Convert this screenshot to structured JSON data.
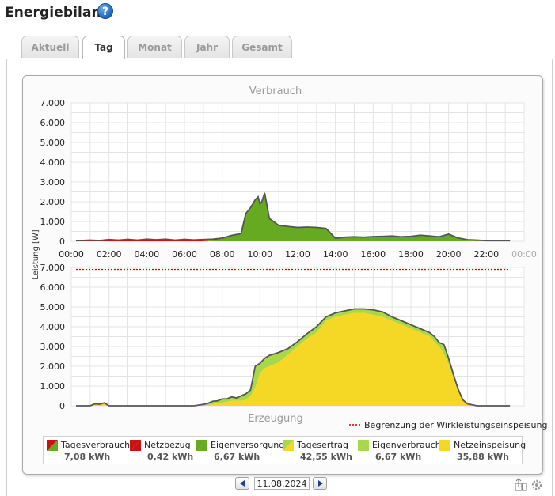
{
  "header": {
    "title": "Energiebilanz",
    "help_icon": "help-icon",
    "help_glyph": "?"
  },
  "tabs": [
    {
      "label": "Aktuell",
      "active": false
    },
    {
      "label": "Tag",
      "active": true
    },
    {
      "label": "Monat",
      "active": false
    },
    {
      "label": "Jahr",
      "active": false
    },
    {
      "label": "Gesamt",
      "active": false
    }
  ],
  "colors": {
    "verbrauch_fill": "#66aa22",
    "netzbezug": "#cc1111",
    "eigenverbrauch": "#a8d84a",
    "netzeinspeisung": "#f5d826",
    "outline": "#555555",
    "limit_line": "#cc0000"
  },
  "chart_data": [
    {
      "type": "area",
      "title": "Verbrauch",
      "ylabel": "Leistung [W]",
      "ylim": [
        0,
        7000
      ],
      "y_ticks": [
        "7.000",
        "6.000",
        "5.000",
        "4.000",
        "3.000",
        "2.000",
        "1.000",
        "0"
      ],
      "x_ticks": [
        "00:00",
        "02:00",
        "04:00",
        "06:00",
        "08:00",
        "10:00",
        "12:00",
        "14:00",
        "16:00",
        "18:00",
        "20:00",
        "22:00",
        "00:00"
      ],
      "x": [
        0.25,
        1,
        1.5,
        2,
        2.5,
        3,
        3.5,
        4,
        4.5,
        5,
        5.5,
        6,
        6.5,
        7,
        7.5,
        8,
        8.5,
        9,
        9.25,
        9.5,
        9.75,
        9.9,
        10,
        10.1,
        10.25,
        10.5,
        11,
        11.5,
        12,
        12.5,
        13,
        13.5,
        14,
        14.5,
        15,
        15.5,
        16,
        16.5,
        17,
        17.5,
        18,
        18.5,
        19,
        19.5,
        20,
        20.5,
        21,
        21.5,
        22,
        23.25
      ],
      "series": [
        {
          "name": "Eigenversorgung",
          "values": [
            0,
            0,
            0,
            0,
            0,
            0,
            0,
            0,
            0,
            0,
            0,
            0,
            0,
            0,
            50,
            120,
            280,
            380,
            1400,
            1700,
            2100,
            2250,
            1900,
            2000,
            2450,
            1150,
            800,
            750,
            700,
            720,
            700,
            650,
            150,
            200,
            220,
            200,
            230,
            240,
            260,
            220,
            240,
            300,
            260,
            220,
            350,
            150,
            50,
            20,
            0,
            0
          ]
        },
        {
          "name": "Netzbezug",
          "values": [
            30,
            60,
            40,
            90,
            60,
            100,
            60,
            110,
            80,
            110,
            60,
            100,
            70,
            90,
            60,
            40,
            20,
            10,
            0,
            0,
            0,
            0,
            0,
            0,
            0,
            0,
            0,
            0,
            0,
            0,
            0,
            0,
            10,
            10,
            10,
            10,
            10,
            10,
            10,
            10,
            10,
            10,
            10,
            10,
            10,
            20,
            30,
            40,
            30,
            30
          ]
        }
      ]
    },
    {
      "type": "area",
      "title": "Erzeugung",
      "ylabel": "Leistung [W]",
      "ylim": [
        0,
        7000
      ],
      "y_ticks": [
        "7.000",
        "6.000",
        "5.000",
        "4.000",
        "3.000",
        "2.000",
        "1.000",
        "0"
      ],
      "x": [
        0.25,
        1,
        1.25,
        1.5,
        1.75,
        2,
        2.5,
        6,
        6.5,
        7,
        7.25,
        7.5,
        7.75,
        8,
        8.25,
        8.5,
        8.75,
        9,
        9.25,
        9.5,
        9.75,
        10,
        10.25,
        10.5,
        11,
        11.5,
        12,
        12.5,
        13,
        13.25,
        13.5,
        14,
        14.5,
        15,
        15.5,
        16,
        16.5,
        17,
        17.5,
        18,
        18.5,
        19,
        19.25,
        19.5,
        19.75,
        20,
        20.25,
        20.5,
        20.75,
        21,
        21.5,
        22,
        23.25
      ],
      "limit_line": {
        "value": 6900,
        "label": "Begrenzung der Wirkleistungseinspeisung"
      },
      "series": [
        {
          "name": "Netzeinspeisung",
          "values": [
            0,
            0,
            100,
            80,
            150,
            0,
            0,
            0,
            0,
            20,
            30,
            80,
            100,
            150,
            200,
            250,
            250,
            250,
            300,
            500,
            900,
            1650,
            1900,
            2000,
            2200,
            2600,
            3000,
            3400,
            3700,
            4000,
            4300,
            4500,
            4600,
            4700,
            4700,
            4600,
            4500,
            4300,
            4100,
            3900,
            3700,
            3500,
            3200,
            3000,
            2600,
            2100,
            1400,
            800,
            300,
            100,
            0,
            0,
            0
          ]
        },
        {
          "name": "Eigenverbrauch",
          "values": [
            0,
            0,
            0,
            0,
            0,
            0,
            0,
            0,
            0,
            50,
            100,
            150,
            150,
            200,
            150,
            200,
            150,
            250,
            300,
            300,
            1100,
            500,
            500,
            550,
            500,
            300,
            250,
            250,
            300,
            250,
            200,
            200,
            200,
            200,
            200,
            250,
            250,
            200,
            200,
            200,
            200,
            200,
            300,
            200,
            500,
            300,
            200,
            50,
            0,
            0,
            0,
            0,
            0
          ]
        }
      ]
    }
  ],
  "legend": [
    {
      "label": "Tagesverbrauch",
      "value": "7,08 kWh",
      "swatch": "diag",
      "c1": "#cc1111",
      "c2": "#66aa22"
    },
    {
      "label": "Netzbezug",
      "value": "0,42 kWh",
      "swatch": "solid",
      "c1": "#cc1111",
      "c2": "#cc1111"
    },
    {
      "label": "Eigenversorgung",
      "value": "6,67 kWh",
      "swatch": "solid",
      "c1": "#66aa22",
      "c2": "#66aa22"
    },
    {
      "label": "Tagesertrag",
      "value": "42,55 kWh",
      "swatch": "diag",
      "c1": "#a8d84a",
      "c2": "#f5d826"
    },
    {
      "label": "Eigenverbrauch",
      "value": "6,67 kWh",
      "swatch": "solid",
      "c1": "#a8d84a",
      "c2": "#a8d84a"
    },
    {
      "label": "Netzeinspeisung",
      "value": "35,88 kWh",
      "swatch": "solid",
      "c1": "#f5d826",
      "c2": "#f5d826"
    }
  ],
  "date_nav": {
    "date": "11.08.2024",
    "prev_icon": "arrow-left-icon",
    "next_icon": "arrow-right-icon"
  },
  "corner_icons": [
    "upload-icon",
    "settings-icon"
  ]
}
